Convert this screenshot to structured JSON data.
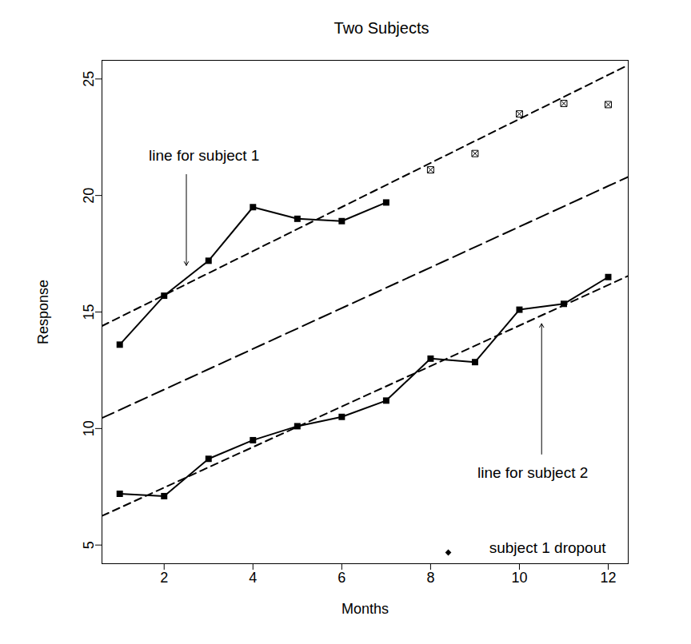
{
  "chart_data": {
    "type": "line",
    "title": "Two Subjects",
    "x_label": "Months",
    "y_label": "Response",
    "xlim": [
      0.6,
      12.45
    ],
    "ylim": [
      4.2,
      25.8
    ],
    "xticks": [
      2,
      4,
      6,
      8,
      10,
      12
    ],
    "yticks": [
      5,
      10,
      15,
      20,
      25
    ],
    "grid": false,
    "legend": "bottom-right",
    "series": [
      {
        "type": "line",
        "color": "#000000",
        "marker": "square",
        "line_style": "solid",
        "x": [
          1,
          2,
          3,
          4,
          5,
          6,
          7
        ],
        "values": [
          13.6,
          15.7,
          17.2,
          19.5,
          19.0,
          18.9,
          19.7
        ]
      },
      {
        "name": "subject 1 dropout",
        "type": "scatter",
        "color": "#000000",
        "marker": "crossed_square",
        "x": [
          8,
          9,
          10,
          11,
          12
        ],
        "values": [
          21.1,
          21.8,
          23.5,
          23.95,
          23.9
        ]
      },
      {
        "type": "line",
        "color": "#000000",
        "marker": "square",
        "line_style": "solid",
        "x": [
          1,
          2,
          3,
          4,
          5,
          6,
          7,
          8,
          9,
          10,
          11,
          12
        ],
        "values": [
          7.2,
          7.1,
          8.7,
          9.5,
          10.1,
          10.5,
          11.2,
          13.0,
          12.85,
          15.1,
          15.35,
          16.5
        ]
      },
      {
        "type": "line",
        "color": "#000000",
        "line_style": "dashed",
        "x": [
          0.6,
          12.45
        ],
        "values": [
          14.4,
          25.6
        ]
      },
      {
        "type": "line",
        "color": "#000000",
        "line_style": "long_dashed",
        "x": [
          0.6,
          12.45
        ],
        "values": [
          10.45,
          20.8
        ]
      },
      {
        "type": "line",
        "color": "#000000",
        "line_style": "dashed",
        "x": [
          0.6,
          12.45
        ],
        "values": [
          6.25,
          16.55
        ]
      }
    ],
    "annotations": [
      {
        "text": "line for subject 1",
        "x": 2.9,
        "y": 21.7,
        "arrow_from": [
          2.5,
          20.9
        ],
        "arrow_to": [
          2.5,
          17.0
        ]
      },
      {
        "text": "line for subject 2",
        "x": 10.3,
        "y": 8.1,
        "arrow_from": [
          10.5,
          8.9
        ],
        "arrow_to": [
          10.5,
          14.5
        ]
      }
    ]
  }
}
